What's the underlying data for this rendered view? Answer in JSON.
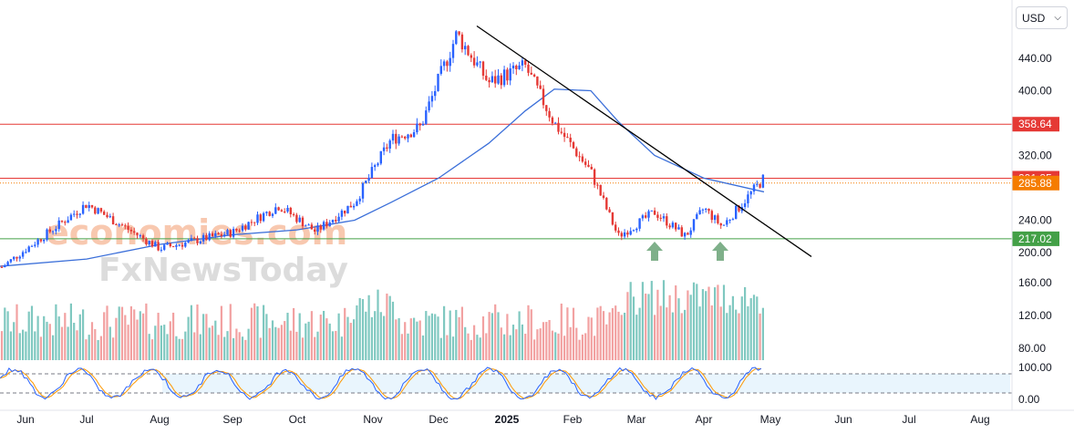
{
  "currency_selector": {
    "label": "USD",
    "icon": "chevron-down-icon"
  },
  "watermark": {
    "line1": "economies.com",
    "line2": "FxNewsToday"
  },
  "colors": {
    "up": "#2962ff",
    "down": "#e53935",
    "ma": "#3b6fd9",
    "trendline": "#000000",
    "resistance": "#e53935",
    "support": "#43a047",
    "volume_up": "#7fc8c0",
    "volume_down": "#f2a1a1",
    "stoch_k": "#2962ff",
    "stoch_d": "#ff9800",
    "arrow": "#7fb08a"
  },
  "chart_data": {
    "type": "candlestick",
    "price_axis": {
      "ticks": [
        "440.00",
        "400.00",
        "320.00",
        "240.00",
        "200.00",
        "160.00",
        "120.00",
        "80.00"
      ]
    },
    "time_axis": {
      "labels": [
        "Jun",
        "Jul",
        "Aug",
        "Sep",
        "Oct",
        "Nov",
        "Dec",
        "2025",
        "Feb",
        "Mar",
        "Apr",
        "May",
        "Jun",
        "Jul",
        "Aug"
      ]
    },
    "levels": [
      {
        "name": "resistance_upper",
        "value": 358.64,
        "label": "358.64",
        "color": "#e53935"
      },
      {
        "name": "resistance_lower",
        "value": 291.85,
        "label": "291.85",
        "color": "#e53935"
      },
      {
        "name": "last_price",
        "value": 285.88,
        "label": "285.88",
        "color": "#f57c00"
      },
      {
        "name": "support",
        "value": 217.02,
        "label": "217.02",
        "color": "#43a047"
      }
    ],
    "trendline": {
      "from": {
        "month": "Dec",
        "price": 480
      },
      "to": {
        "month": "May",
        "price": 195
      }
    },
    "price_path": [
      [
        "Jun",
        182
      ],
      [
        "Jul",
        260
      ],
      [
        "Aug",
        205
      ],
      [
        "Sep",
        225
      ],
      [
        "Oct",
        258
      ],
      [
        "Oct",
        226
      ],
      [
        "Nov",
        262
      ],
      [
        "Nov",
        340
      ],
      [
        "Dec",
        355
      ],
      [
        "Dec",
        470
      ],
      [
        "2025",
        410
      ],
      [
        "2025",
        430
      ],
      [
        "Feb",
        360
      ],
      [
        "Feb",
        300
      ],
      [
        "Mar",
        220
      ],
      [
        "Mar",
        250
      ],
      [
        "Apr",
        220
      ],
      [
        "Apr",
        255
      ],
      [
        "Apr",
        232
      ],
      [
        "May",
        292
      ]
    ],
    "moving_average": [
      [
        "Jun",
        183
      ],
      [
        "Jul",
        192
      ],
      [
        "Aug",
        210
      ],
      [
        "Sep",
        222
      ],
      [
        "Oct",
        228
      ],
      [
        "Nov",
        240
      ],
      [
        "Nov",
        262
      ],
      [
        "Dec",
        292
      ],
      [
        "2025",
        335
      ],
      [
        "2025",
        375
      ],
      [
        "Feb",
        402
      ],
      [
        "Feb",
        400
      ],
      [
        "Mar",
        362
      ],
      [
        "Mar",
        320
      ],
      [
        "Apr",
        292
      ],
      [
        "May",
        275
      ]
    ],
    "volume_panel": {
      "ticks": [
        "160.00",
        "120.00",
        "80.00"
      ]
    },
    "stochastic": {
      "ticks": [
        "100.00",
        "0.00"
      ],
      "upper_band": 80,
      "lower_band": 20
    },
    "annotations": [
      {
        "type": "up-arrow",
        "month": "Mar",
        "price": 200
      },
      {
        "type": "up-arrow",
        "month": "Apr",
        "price": 200
      }
    ]
  }
}
